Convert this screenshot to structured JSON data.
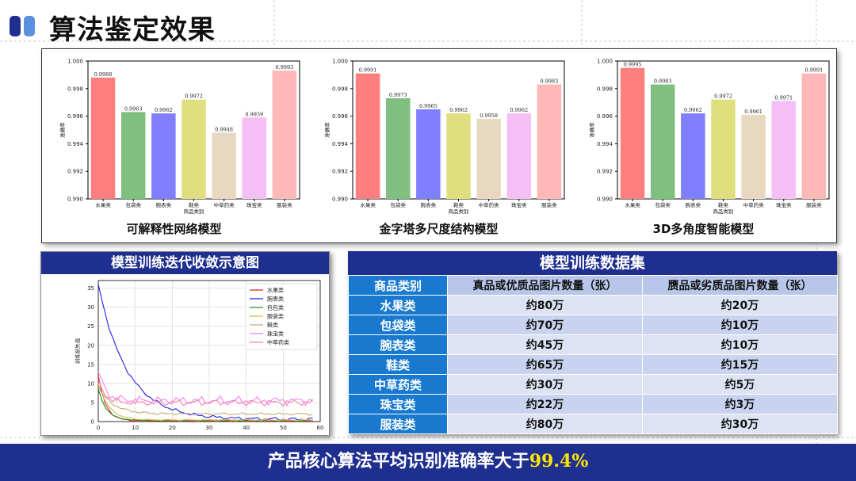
{
  "header": {
    "title": "算法鉴定效果",
    "accent_colors": [
      "#1f2f8f",
      "#5b8fe0"
    ]
  },
  "chart_data": [
    {
      "type": "bar",
      "title": "可解释性网络模型",
      "xlabel": "商品类别",
      "ylabel": "准确率",
      "ylim": [
        0.99,
        1.0
      ],
      "yticks": [
        "0.990",
        "0.992",
        "0.994",
        "0.996",
        "0.998",
        "1.000"
      ],
      "categories": [
        "水果类",
        "包袋类",
        "腕表类",
        "鞋类",
        "中草药类",
        "珠宝类",
        "服装类"
      ],
      "values": [
        0.9988,
        0.9963,
        0.9962,
        0.9972,
        0.9948,
        0.9959,
        0.9993
      ],
      "labels": [
        "0.9988",
        "0.9963",
        "0.9962",
        "0.9972",
        "0.9948",
        "0.9959",
        "0.9993"
      ],
      "colors": [
        "#ff7f7f",
        "#7fbf7f",
        "#7f7fff",
        "#dfdf7f",
        "#e8d8bf",
        "#f4bff4",
        "#ffb8b8"
      ]
    },
    {
      "type": "bar",
      "title": "金字塔多尺度结构模型",
      "xlabel": "商品类别",
      "ylabel": "准确率",
      "ylim": [
        0.99,
        1.0
      ],
      "yticks": [
        "0.990",
        "0.992",
        "0.994",
        "0.996",
        "0.998",
        "1.000"
      ],
      "categories": [
        "水果类",
        "包袋类",
        "腕表类",
        "鞋类",
        "中草药类",
        "珠宝类",
        "服装类"
      ],
      "values": [
        0.9991,
        0.9973,
        0.9965,
        0.9962,
        0.9958,
        0.9962,
        0.9983
      ],
      "labels": [
        "0.9991",
        "0.9973",
        "0.9965",
        "0.9962",
        "0.9958",
        "0.9962",
        "0.9983"
      ],
      "colors": [
        "#ff7f7f",
        "#7fbf7f",
        "#7f7fff",
        "#dfdf7f",
        "#e8d8bf",
        "#f4bff4",
        "#ffb8b8"
      ]
    },
    {
      "type": "bar",
      "title": "3D多角度智能模型",
      "xlabel": "商品类别",
      "ylabel": "准确率",
      "ylim": [
        0.99,
        1.0
      ],
      "yticks": [
        "0.990",
        "0.992",
        "0.994",
        "0.996",
        "0.998",
        "1.000"
      ],
      "categories": [
        "水果类",
        "包袋类",
        "腕表类",
        "鞋类",
        "中草药类",
        "珠宝类",
        "服装类"
      ],
      "values": [
        0.9995,
        0.9983,
        0.9962,
        0.9972,
        0.9961,
        0.9971,
        0.9991
      ],
      "labels": [
        "0.9995",
        "0.9983",
        "0.9962",
        "0.9972",
        "0.9961",
        "0.9971",
        "0.9991"
      ],
      "colors": [
        "#ff7f7f",
        "#7fbf7f",
        "#7f7fff",
        "#dfdf7f",
        "#e8d8bf",
        "#f4bff4",
        "#ffb8b8"
      ]
    },
    {
      "type": "line",
      "title": "模型训练迭代收敛示意图",
      "ylabel": "训练损失值",
      "xlim": [
        0,
        60
      ],
      "ylim": [
        0,
        37
      ],
      "xticks": [
        "0",
        "10",
        "20",
        "30",
        "40",
        "50",
        "60"
      ],
      "yticks": [
        "0",
        "5",
        "10",
        "15",
        "20",
        "25",
        "30",
        "35"
      ],
      "grid": true,
      "legend": "top-right",
      "series": [
        {
          "name": "水果类",
          "color": "#e02020",
          "start": 12.0,
          "end": 0.2,
          "rate": 0.5,
          "noise": 0.2
        },
        {
          "name": "腕表类",
          "color": "#2020e8",
          "start": 36.0,
          "end": 0.6,
          "rate": 0.13,
          "noise": 0.5
        },
        {
          "name": "包包类",
          "color": "#209020",
          "start": 8.5,
          "end": 0.3,
          "rate": 0.45,
          "noise": 0.15
        },
        {
          "name": "服装类",
          "color": "#d8b84a",
          "start": 10.0,
          "end": 0.4,
          "rate": 0.35,
          "noise": 0.2
        },
        {
          "name": "鞋类",
          "color": "#c8a878",
          "start": 9.0,
          "end": 2.0,
          "rate": 0.25,
          "noise": 0.35
        },
        {
          "name": "珠宝类",
          "color": "#ee80ee",
          "start": 13.0,
          "end": 5.5,
          "rate": 0.5,
          "noise": 1.3
        },
        {
          "name": "中草药类",
          "color": "#ff7fa8",
          "start": 11.0,
          "end": 5.0,
          "rate": 0.55,
          "noise": 1.0
        }
      ]
    }
  ],
  "table": {
    "title": "模型训练数据集",
    "headers": [
      "商品类别",
      "真品或优质品图片数量（张）",
      "赝品或劣质品图片数量（张）"
    ],
    "rows": [
      {
        "category": "水果类",
        "genuine": "约80万",
        "fake": "约20万"
      },
      {
        "category": "包袋类",
        "genuine": "约70万",
        "fake": "约10万"
      },
      {
        "category": "腕表类",
        "genuine": "约45万",
        "fake": "约10万"
      },
      {
        "category": "鞋类",
        "genuine": "约65万",
        "fake": "约15万"
      },
      {
        "category": "中草药类",
        "genuine": "约30万",
        "fake": "约5万"
      },
      {
        "category": "珠宝类",
        "genuine": "约22万",
        "fake": "约3万"
      },
      {
        "category": "服装类",
        "genuine": "约80万",
        "fake": "约30万"
      }
    ]
  },
  "footer": {
    "text": "产品核心算法平均识别准确率大于",
    "highlight": "99.4%"
  }
}
